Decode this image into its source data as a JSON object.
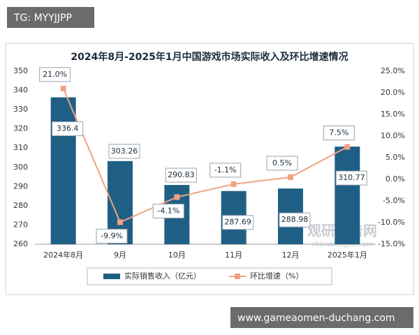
{
  "overlays": {
    "top": "TG: MYYJJPP",
    "bottom": "www.gameaomen-duchang.com"
  },
  "chart_data": {
    "type": "bar-line",
    "title": "2024年8月-2025年1月中国游戏市场实际收入及环比增速情况",
    "categories": [
      "2024年8月",
      "9月",
      "10月",
      "11月",
      "12月",
      "2025年1月"
    ],
    "series": [
      {
        "name": "实际销售收入（亿元）",
        "type": "bar",
        "color": "#1f5f86",
        "values": [
          336.4,
          303.26,
          290.83,
          287.69,
          288.98,
          310.77
        ]
      },
      {
        "name": "环比增速（%）",
        "type": "line",
        "axis": "y2",
        "color": "#efa283",
        "values": [
          21.0,
          -9.9,
          -4.1,
          -1.1,
          0.5,
          7.5
        ],
        "value_labels": [
          "21.0%",
          "-9.9%",
          "-4.1%",
          "-1.1%",
          "0.5%",
          "7.5%"
        ]
      }
    ],
    "ylim": [
      260,
      350
    ],
    "yticks": [
      260,
      270,
      280,
      290,
      300,
      310,
      320,
      330,
      340,
      350
    ],
    "y2lim": [
      -15,
      25
    ],
    "y2ticks": [
      {
        "value": -15,
        "label": "-15.0%"
      },
      {
        "value": -10,
        "label": "-10.0%"
      },
      {
        "value": -5,
        "label": "-5.0%"
      },
      {
        "value": 0,
        "label": "0.0%"
      },
      {
        "value": 5,
        "label": "5.0%"
      },
      {
        "value": 10,
        "label": "10.0%"
      },
      {
        "value": 15,
        "label": "15.0%"
      },
      {
        "value": 20,
        "label": "20.0%"
      },
      {
        "value": 25,
        "label": "25.0%"
      }
    ],
    "grid": false,
    "annotations": [
      "观研报告网",
      "chinabaogao.com"
    ]
  }
}
